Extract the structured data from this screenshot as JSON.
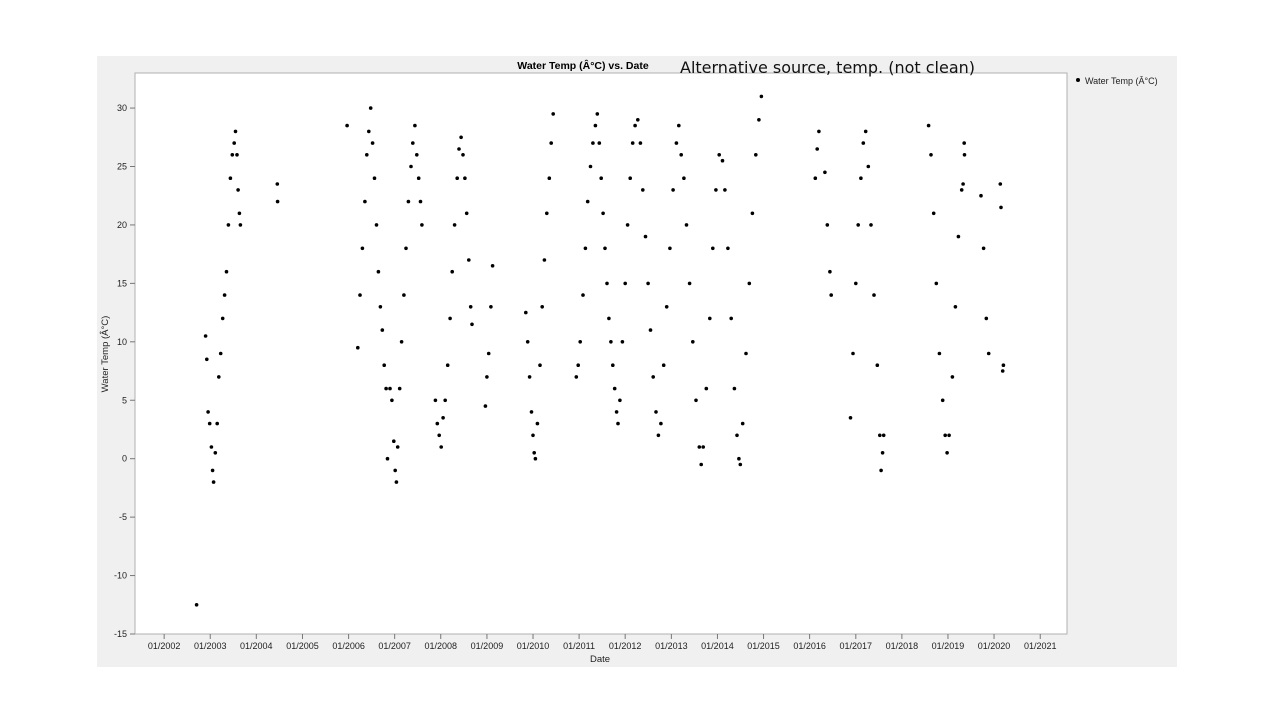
{
  "annotation": "Alternative source, temp. (not clean)",
  "chart_data": {
    "type": "scatter",
    "title": "Water Temp (Â°C) vs. Date",
    "xlabel": "Date",
    "ylabel": "Water Temp (Â°C)",
    "x_ticks": [
      "01/2002",
      "01/2003",
      "01/2004",
      "01/2005",
      "01/2006",
      "01/2007",
      "01/2008",
      "01/2009",
      "01/2010",
      "01/2011",
      "01/2012",
      "01/2013",
      "01/2014",
      "01/2015",
      "01/2016",
      "01/2017",
      "01/2018",
      "01/2019",
      "01/2020",
      "01/2021"
    ],
    "xlim": [
      "2001-05-15",
      "2021-08-01"
    ],
    "y_ticks": [
      30,
      25,
      20,
      15,
      10,
      5,
      0,
      -5,
      -10,
      -15
    ],
    "ylim": [
      -15,
      33
    ],
    "grid": false,
    "legend": {
      "position": "right",
      "entries": [
        "Water Temp (Â°C)"
      ]
    },
    "marker_color": "#000000",
    "series": [
      {
        "name": "Water Temp (Â°C)",
        "points": [
          [
            "2002-09-15",
            -12.5
          ],
          [
            "2002-11-25",
            10.5
          ],
          [
            "2002-12-05",
            8.5
          ],
          [
            "2002-12-15",
            4.0
          ],
          [
            "2002-12-28",
            3.0
          ],
          [
            "2003-01-10",
            1.0
          ],
          [
            "2003-01-20",
            -1.0
          ],
          [
            "2003-01-28",
            -2.0
          ],
          [
            "2003-02-10",
            0.5
          ],
          [
            "2003-02-25",
            3.0
          ],
          [
            "2003-03-10",
            7.0
          ],
          [
            "2003-03-25",
            9.0
          ],
          [
            "2003-04-10",
            12.0
          ],
          [
            "2003-04-25",
            14.0
          ],
          [
            "2003-05-10",
            16.0
          ],
          [
            "2003-05-25",
            20.0
          ],
          [
            "2003-06-10",
            24.0
          ],
          [
            "2003-06-25",
            26.0
          ],
          [
            "2003-07-10",
            27.0
          ],
          [
            "2003-07-20",
            28.0
          ],
          [
            "2003-08-01",
            26.0
          ],
          [
            "2003-08-10",
            23.0
          ],
          [
            "2003-08-20",
            21.0
          ],
          [
            "2003-08-28",
            20.0
          ],
          [
            "2004-06-15",
            23.5
          ],
          [
            "2004-06-18",
            22.0
          ],
          [
            "2005-12-20",
            28.5
          ],
          [
            "2006-03-15",
            9.5
          ],
          [
            "2006-04-01",
            14.0
          ],
          [
            "2006-04-20",
            18.0
          ],
          [
            "2006-05-10",
            22.0
          ],
          [
            "2006-05-25",
            26.0
          ],
          [
            "2006-06-10",
            28.0
          ],
          [
            "2006-06-25",
            30.0
          ],
          [
            "2006-07-10",
            27.0
          ],
          [
            "2006-07-25",
            24.0
          ],
          [
            "2006-08-10",
            20.0
          ],
          [
            "2006-08-25",
            16.0
          ],
          [
            "2006-09-10",
            13.0
          ],
          [
            "2006-09-25",
            11.0
          ],
          [
            "2006-10-10",
            8.0
          ],
          [
            "2006-10-25",
            6.0
          ],
          [
            "2006-11-05",
            0.0
          ],
          [
            "2006-11-25",
            6.0
          ],
          [
            "2006-12-10",
            5.0
          ],
          [
            "2006-12-25",
            1.5
          ],
          [
            "2007-01-05",
            -1.0
          ],
          [
            "2007-01-15",
            -2.0
          ],
          [
            "2007-01-25",
            1.0
          ],
          [
            "2007-02-10",
            6.0
          ],
          [
            "2007-02-25",
            10.0
          ],
          [
            "2007-03-15",
            14.0
          ],
          [
            "2007-04-01",
            18.0
          ],
          [
            "2007-04-20",
            22.0
          ],
          [
            "2007-05-10",
            25.0
          ],
          [
            "2007-05-25",
            27.0
          ],
          [
            "2007-06-10",
            28.5
          ],
          [
            "2007-06-25",
            26.0
          ],
          [
            "2007-07-10",
            24.0
          ],
          [
            "2007-07-25",
            22.0
          ],
          [
            "2007-08-05",
            20.0
          ],
          [
            "2007-11-20",
            5.0
          ],
          [
            "2007-12-05",
            3.0
          ],
          [
            "2007-12-20",
            2.0
          ],
          [
            "2008-01-05",
            1.0
          ],
          [
            "2008-01-20",
            3.5
          ],
          [
            "2008-02-05",
            5.0
          ],
          [
            "2008-02-25",
            8.0
          ],
          [
            "2008-03-15",
            12.0
          ],
          [
            "2008-04-01",
            16.0
          ],
          [
            "2008-04-20",
            20.0
          ],
          [
            "2008-05-10",
            24.0
          ],
          [
            "2008-05-25",
            26.5
          ],
          [
            "2008-06-10",
            27.5
          ],
          [
            "2008-06-25",
            26.0
          ],
          [
            "2008-07-10",
            24.0
          ],
          [
            "2008-07-25",
            21.0
          ],
          [
            "2008-08-10",
            17.0
          ],
          [
            "2008-08-25",
            13.0
          ],
          [
            "2008-09-05",
            11.5
          ],
          [
            "2008-12-20",
            4.5
          ],
          [
            "2009-01-01",
            7.0
          ],
          [
            "2009-01-15",
            9.0
          ],
          [
            "2009-02-01",
            13.0
          ],
          [
            "2009-02-15",
            16.5
          ],
          [
            "2009-11-05",
            12.5
          ],
          [
            "2009-11-20",
            10.0
          ],
          [
            "2009-12-05",
            7.0
          ],
          [
            "2009-12-20",
            4.0
          ],
          [
            "2010-01-01",
            2.0
          ],
          [
            "2010-01-10",
            0.5
          ],
          [
            "2010-01-20",
            0.0
          ],
          [
            "2010-02-05",
            3.0
          ],
          [
            "2010-02-25",
            8.0
          ],
          [
            "2010-03-15",
            13.0
          ],
          [
            "2010-04-01",
            17.0
          ],
          [
            "2010-04-20",
            21.0
          ],
          [
            "2010-05-10",
            24.0
          ],
          [
            "2010-05-25",
            27.0
          ],
          [
            "2010-06-10",
            29.5
          ],
          [
            "2010-12-10",
            7.0
          ],
          [
            "2010-12-25",
            8.0
          ],
          [
            "2011-01-10",
            10.0
          ],
          [
            "2011-02-01",
            14.0
          ],
          [
            "2011-02-20",
            18.0
          ],
          [
            "2011-03-10",
            22.0
          ],
          [
            "2011-04-01",
            25.0
          ],
          [
            "2011-04-20",
            27.0
          ],
          [
            "2011-05-10",
            28.5
          ],
          [
            "2011-05-25",
            29.5
          ],
          [
            "2011-06-10",
            27.0
          ],
          [
            "2011-06-25",
            24.0
          ],
          [
            "2011-07-10",
            21.0
          ],
          [
            "2011-07-25",
            18.0
          ],
          [
            "2011-08-10",
            15.0
          ],
          [
            "2011-08-25",
            12.0
          ],
          [
            "2011-09-10",
            10.0
          ],
          [
            "2011-09-25",
            8.0
          ],
          [
            "2011-10-10",
            6.0
          ],
          [
            "2011-10-25",
            4.0
          ],
          [
            "2011-11-05",
            3.0
          ],
          [
            "2011-11-20",
            5.0
          ],
          [
            "2011-12-10",
            10.0
          ],
          [
            "2012-01-01",
            15.0
          ],
          [
            "2012-01-20",
            20.0
          ],
          [
            "2012-02-10",
            24.0
          ],
          [
            "2012-03-01",
            27.0
          ],
          [
            "2012-03-20",
            28.5
          ],
          [
            "2012-04-10",
            29.0
          ],
          [
            "2012-05-01",
            27.0
          ],
          [
            "2012-05-20",
            23.0
          ],
          [
            "2012-06-10",
            19.0
          ],
          [
            "2012-07-01",
            15.0
          ],
          [
            "2012-07-20",
            11.0
          ],
          [
            "2012-08-10",
            7.0
          ],
          [
            "2012-09-01",
            4.0
          ],
          [
            "2012-09-20",
            2.0
          ],
          [
            "2012-10-10",
            3.0
          ],
          [
            "2012-11-01",
            8.0
          ],
          [
            "2012-11-25",
            13.0
          ],
          [
            "2012-12-20",
            18.0
          ],
          [
            "2013-01-15",
            23.0
          ],
          [
            "2013-02-10",
            27.0
          ],
          [
            "2013-03-01",
            28.5
          ],
          [
            "2013-03-20",
            26.0
          ],
          [
            "2013-04-10",
            24.0
          ],
          [
            "2013-05-01",
            20.0
          ],
          [
            "2013-05-25",
            15.0
          ],
          [
            "2013-06-20",
            10.0
          ],
          [
            "2013-07-15",
            5.0
          ],
          [
            "2013-08-10",
            1.0
          ],
          [
            "2013-08-25",
            -0.5
          ],
          [
            "2013-09-10",
            1.0
          ],
          [
            "2013-10-05",
            6.0
          ],
          [
            "2013-11-01",
            12.0
          ],
          [
            "2013-11-25",
            18.0
          ],
          [
            "2013-12-20",
            23.0
          ],
          [
            "2014-01-15",
            26.0
          ],
          [
            "2014-02-10",
            25.5
          ],
          [
            "2014-03-01",
            23.0
          ],
          [
            "2014-03-25",
            18.0
          ],
          [
            "2014-04-20",
            12.0
          ],
          [
            "2014-05-15",
            6.0
          ],
          [
            "2014-06-05",
            2.0
          ],
          [
            "2014-06-20",
            0.0
          ],
          [
            "2014-07-01",
            -0.5
          ],
          [
            "2014-07-20",
            3.0
          ],
          [
            "2014-08-15",
            9.0
          ],
          [
            "2014-09-10",
            15.0
          ],
          [
            "2014-10-05",
            21.0
          ],
          [
            "2014-11-01",
            26.0
          ],
          [
            "2014-11-25",
            29.0
          ],
          [
            "2014-12-15",
            31.0
          ],
          [
            "2016-02-15",
            24.0
          ],
          [
            "2016-03-01",
            26.5
          ],
          [
            "2016-03-15",
            28.0
          ],
          [
            "2016-05-01",
            24.5
          ],
          [
            "2016-05-20",
            20.0
          ],
          [
            "2016-06-10",
            16.0
          ],
          [
            "2016-06-20",
            14.0
          ],
          [
            "2016-11-20",
            3.5
          ],
          [
            "2016-12-10",
            9.0
          ],
          [
            "2017-01-01",
            15.0
          ],
          [
            "2017-01-20",
            20.0
          ],
          [
            "2017-02-10",
            24.0
          ],
          [
            "2017-03-01",
            27.0
          ],
          [
            "2017-03-20",
            28.0
          ],
          [
            "2017-04-10",
            25.0
          ],
          [
            "2017-05-01",
            20.0
          ],
          [
            "2017-05-25",
            14.0
          ],
          [
            "2017-06-20",
            8.0
          ],
          [
            "2017-07-10",
            2.0
          ],
          [
            "2017-07-20",
            -1.0
          ],
          [
            "2017-08-01",
            0.5
          ],
          [
            "2017-08-10",
            2.0
          ],
          [
            "2018-08-01",
            28.5
          ],
          [
            "2018-08-20",
            26.0
          ],
          [
            "2018-09-10",
            21.0
          ],
          [
            "2018-10-01",
            15.0
          ],
          [
            "2018-10-25",
            9.0
          ],
          [
            "2018-11-20",
            5.0
          ],
          [
            "2018-12-10",
            2.0
          ],
          [
            "2018-12-25",
            0.5
          ],
          [
            "2019-01-10",
            2.0
          ],
          [
            "2019-02-05",
            7.0
          ],
          [
            "2019-03-01",
            13.0
          ],
          [
            "2019-03-25",
            19.0
          ],
          [
            "2019-04-20",
            23.0
          ],
          [
            "2019-05-01",
            23.5
          ],
          [
            "2019-05-10",
            27.0
          ],
          [
            "2019-05-12",
            26.0
          ],
          [
            "2019-09-20",
            22.5
          ],
          [
            "2019-10-10",
            18.0
          ],
          [
            "2019-11-01",
            12.0
          ],
          [
            "2019-11-20",
            9.0
          ],
          [
            "2020-02-20",
            23.5
          ],
          [
            "2020-02-25",
            21.5
          ],
          [
            "2020-03-10",
            7.5
          ],
          [
            "2020-03-15",
            8.0
          ]
        ]
      }
    ]
  }
}
